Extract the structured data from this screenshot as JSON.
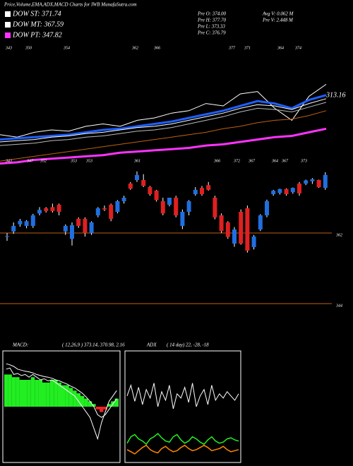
{
  "header": {
    "title": "Price,Volume,EMA,ADX,MACD Charts for IWB MunafaSutra.com",
    "legend": [
      {
        "text": "DOW ST: 371.74",
        "color": "#ffffff"
      },
      {
        "text": "DOW MT: 367.59",
        "color": "#ffffff"
      },
      {
        "text": "DOW PT: 347.82",
        "color": "#ff33ff"
      }
    ],
    "stats": [
      "Pre O: 374.00",
      "Pre H: 377.70",
      "Pre L: 373.33",
      "Pre C: 376.79",
      "Avg V: 0.062 M",
      "Pre V: 2.448 M"
    ]
  },
  "chart_data": [
    {
      "type": "line",
      "value_label": "313.16",
      "annotations_upper": [
        "343",
        "350",
        "354",
        "362",
        "366",
        "377",
        "371",
        "364",
        "374"
      ],
      "annotations_lower": [
        "343",
        "347",
        "352",
        "353",
        "353",
        "361",
        "366",
        "372",
        "367",
        "364",
        "367",
        "373"
      ],
      "ylim": [
        0,
        100
      ],
      "series": [
        {
          "color": "#ffffff",
          "width": 1,
          "values": [
            26,
            24,
            28,
            30,
            29,
            33,
            35,
            33,
            38,
            40,
            44,
            46,
            52,
            50,
            60,
            62,
            48,
            38,
            58,
            68
          ]
        },
        {
          "color": "#1e5fff",
          "width": 3,
          "values": [
            22,
            23,
            24,
            25,
            26,
            28,
            30,
            31,
            33,
            35,
            37,
            40,
            43,
            46,
            50,
            54,
            52,
            48,
            55,
            59
          ]
        },
        {
          "color": "#ffffff",
          "width": 1,
          "values": [
            20,
            21,
            22,
            24,
            25,
            27,
            28,
            30,
            32,
            33,
            35,
            38,
            41,
            44,
            48,
            51,
            50,
            47,
            52,
            56
          ]
        },
        {
          "color": "#bbbbbb",
          "width": 1,
          "values": [
            17,
            18,
            19,
            21,
            22,
            24,
            25,
            27,
            29,
            30,
            32,
            35,
            38,
            41,
            45,
            48,
            47,
            45,
            49,
            53
          ]
        },
        {
          "color": "#c06010",
          "width": 1,
          "values": [
            4,
            6,
            8,
            10,
            12,
            14,
            16,
            18,
            20,
            22,
            24,
            26,
            28,
            31,
            33,
            36,
            38,
            39,
            42,
            46
          ]
        },
        {
          "color": "#ff33ff",
          "width": 3,
          "values": [
            2,
            3,
            5,
            6,
            7,
            8,
            9,
            11,
            12,
            13,
            14,
            15,
            17,
            18,
            20,
            22,
            24,
            25,
            28,
            31
          ]
        }
      ]
    },
    {
      "type": "candlestick",
      "up_color": "#1f6fe0",
      "down_color": "#e02020",
      "grid_color": "#c06010",
      "ylim": [
        335,
        379.1
      ],
      "yticks": [
        362,
        344
      ],
      "ohlc": [
        [
          361.1,
          362.0,
          360.0,
          361.2
        ],
        [
          362.4,
          364.7,
          361.8,
          363.8
        ],
        [
          364.2,
          365.6,
          363.6,
          365.1
        ],
        [
          363.8,
          365.3,
          363.2,
          365.0
        ],
        [
          363.8,
          366.9,
          363.3,
          366.5
        ],
        [
          367.0,
          368.6,
          366.5,
          367.9
        ],
        [
          368.3,
          368.6,
          367.2,
          367.6
        ],
        [
          368.6,
          369.5,
          367.2,
          367.6
        ],
        [
          369.2,
          369.5,
          366.5,
          367.4
        ],
        [
          362.4,
          364.2,
          361.5,
          363.8
        ],
        [
          360.5,
          364.7,
          358.8,
          364.0
        ],
        [
          365.6,
          366.0,
          363.3,
          363.8
        ],
        [
          365.6,
          366.0,
          361.1,
          362.0
        ],
        [
          362.0,
          365.0,
          361.5,
          364.7
        ],
        [
          366.5,
          368.6,
          366.0,
          368.3
        ],
        [
          368.3,
          369.0,
          367.6,
          368.0
        ],
        [
          369.2,
          369.5,
          365.0,
          365.6
        ],
        [
          367.4,
          370.4,
          367.0,
          370.1
        ],
        [
          370.1,
          371.5,
          369.5,
          371.0
        ],
        [
          374.6,
          375.0,
          373.0,
          373.3
        ],
        [
          375.5,
          377.7,
          375.0,
          376.8
        ],
        [
          375.5,
          377.0,
          373.7,
          374.0
        ],
        [
          373.7,
          374.0,
          371.5,
          371.9
        ],
        [
          372.8,
          373.0,
          370.0,
          370.4
        ],
        [
          370.1,
          371.0,
          366.5,
          367.0
        ],
        [
          369.2,
          371.0,
          368.8,
          371.0
        ],
        [
          371.0,
          371.5,
          366.0,
          366.5
        ],
        [
          363.8,
          368.0,
          363.0,
          367.4
        ],
        [
          367.4,
          370.4,
          366.5,
          370.1
        ],
        [
          371.9,
          373.7,
          371.5,
          373.0
        ],
        [
          373.5,
          374.0,
          371.5,
          371.9
        ],
        [
          374.2,
          375.0,
          372.8,
          373.0
        ],
        [
          371.0,
          371.5,
          365.5,
          366.0
        ],
        [
          366.5,
          367.0,
          362.0,
          362.5
        ],
        [
          364.7,
          365.0,
          360.5,
          361.0
        ],
        [
          359.3,
          363.5,
          358.5,
          362.9
        ],
        [
          367.4,
          368.0,
          359.0,
          359.3
        ],
        [
          368.3,
          369.0,
          357.0,
          357.5
        ],
        [
          358.4,
          361.5,
          357.8,
          361.1
        ],
        [
          362.9,
          366.8,
          362.5,
          366.5
        ],
        [
          366.5,
          370.5,
          366.0,
          370.1
        ],
        [
          371.9,
          373.0,
          371.5,
          372.8
        ],
        [
          372.2,
          373.3,
          371.8,
          373.2
        ],
        [
          373.2,
          373.4,
          371.5,
          371.9
        ],
        [
          372.4,
          373.6,
          372.0,
          373.5
        ],
        [
          374.6,
          375.0,
          371.5,
          372.1
        ],
        [
          374.6,
          375.6,
          374.2,
          375.4
        ],
        [
          375.2,
          376.0,
          374.5,
          375.7
        ],
        [
          375.5,
          375.6,
          373.5,
          373.7
        ],
        [
          373.5,
          377.5,
          373.0,
          376.8
        ]
      ]
    },
    {
      "type": "macd",
      "label": "MACD:",
      "params": "( 12,26,9 ) 373.14, 370.98, 2.16",
      "ylim": [
        -1,
        1
      ],
      "histogram": [
        0.6,
        0.6,
        0.55,
        0.55,
        0.5,
        0.5,
        0.5,
        0.55,
        0.5,
        0.5,
        0.45,
        0.45,
        0.5,
        0.5,
        0.45,
        0.4,
        0.4,
        0.35,
        0.3,
        0.25,
        0.2,
        0.15,
        0.1,
        0.05,
        -0.05,
        -0.1,
        -0.05,
        0.05,
        0.1,
        0.15
      ],
      "pos_color": "#22ee22",
      "neg_color": "#ee2222",
      "series": [
        {
          "color": "#ffffff",
          "values": [
            0.7,
            0.72,
            0.6,
            0.62,
            0.58,
            0.6,
            0.55,
            0.6,
            0.55,
            0.5,
            0.52,
            0.48,
            0.5,
            0.45,
            0.4,
            0.35,
            0.3,
            0.25,
            0.2,
            0.1,
            0,
            -0.1,
            -0.2,
            -0.4,
            -0.6,
            -0.3,
            -0.1,
            0.1,
            0.2,
            0.3
          ]
        },
        {
          "color": "#ffffff",
          "values": [
            0.8,
            0.78,
            0.75,
            0.7,
            0.68,
            0.66,
            0.65,
            0.63,
            0.6,
            0.58,
            0.56,
            0.55,
            0.53,
            0.5,
            0.48,
            0.45,
            0.42,
            0.38,
            0.35,
            0.3,
            0.25,
            0.18,
            0.1,
            0,
            -0.15,
            -0.2,
            -0.15,
            -0.05,
            0.05,
            0.15
          ]
        }
      ]
    },
    {
      "type": "adx",
      "label": "ADX",
      "params": "( 14 day) 22, -28, -18",
      "ylim": [
        0,
        100
      ],
      "series": [
        {
          "color": "#ffffff",
          "values": [
            60,
            70,
            55,
            68,
            52,
            66,
            58,
            72,
            50,
            64,
            56,
            70,
            48,
            62,
            58,
            68,
            54,
            72,
            50,
            60,
            66,
            52,
            70,
            56,
            62,
            58,
            64,
            60,
            56,
            62
          ]
        },
        {
          "color": "#22ee22",
          "values": [
            16,
            22,
            24,
            20,
            18,
            15,
            20,
            22,
            25,
            21,
            18,
            17,
            22,
            24,
            19,
            16,
            18,
            22,
            20,
            17,
            15,
            19,
            22,
            18,
            16,
            17,
            20,
            21,
            19,
            18
          ]
        },
        {
          "color": "#ff8800",
          "values": [
            10,
            8,
            6,
            9,
            12,
            14,
            10,
            8,
            7,
            11,
            13,
            10,
            8,
            9,
            12,
            14,
            11,
            9,
            10,
            12,
            14,
            12,
            9,
            10,
            11,
            13,
            10,
            8,
            9,
            10
          ]
        }
      ]
    }
  ]
}
